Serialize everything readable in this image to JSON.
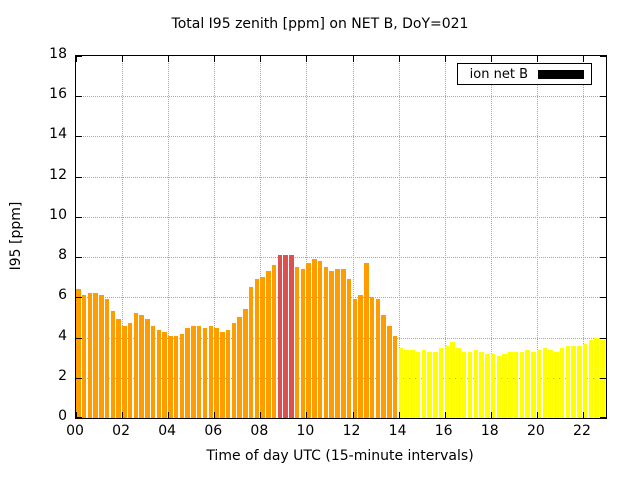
{
  "title": "Total I95 zenith [ppm] on NET B, DoY=021",
  "axes": {
    "xlabel": "Time of day UTC (15-minute intervals)",
    "ylabel": "I95 [ppm]"
  },
  "legend": {
    "label": "ion net B",
    "swatch_color": "#000000"
  },
  "chart_data": {
    "type": "bar",
    "title": "Total I95 zenith [ppm] on NET B, DoY=021",
    "xlabel": "Time of day UTC (15-minute intervals)",
    "ylabel": "I95 [ppm]",
    "xlim": [
      0,
      23
    ],
    "ylim": [
      0,
      18
    ],
    "x_tick_values": [
      0,
      2,
      4,
      6,
      8,
      10,
      12,
      14,
      16,
      18,
      20,
      22
    ],
    "x_tick_labels": [
      "00",
      "02",
      "04",
      "06",
      "08",
      "10",
      "12",
      "14",
      "16",
      "18",
      "20",
      "22"
    ],
    "y_tick_values": [
      0,
      2,
      4,
      6,
      8,
      10,
      12,
      14,
      16,
      18
    ],
    "grid": true,
    "legend_position": "top-right",
    "series_name": "ion net B",
    "interval_minutes": 15,
    "colors": {
      "o": "#ff9d00",
      "r": "#dd5050",
      "y": "#ffff00"
    },
    "points": [
      {
        "t": "00:00",
        "v": 6.4,
        "c": "o"
      },
      {
        "t": "00:15",
        "v": 6.1,
        "c": "o"
      },
      {
        "t": "00:30",
        "v": 6.2,
        "c": "o"
      },
      {
        "t": "00:45",
        "v": 6.2,
        "c": "o"
      },
      {
        "t": "01:00",
        "v": 6.1,
        "c": "o"
      },
      {
        "t": "01:15",
        "v": 5.9,
        "c": "o"
      },
      {
        "t": "01:30",
        "v": 5.3,
        "c": "o"
      },
      {
        "t": "01:45",
        "v": 4.9,
        "c": "o"
      },
      {
        "t": "02:00",
        "v": 4.6,
        "c": "o"
      },
      {
        "t": "02:15",
        "v": 4.7,
        "c": "o"
      },
      {
        "t": "02:30",
        "v": 5.2,
        "c": "o"
      },
      {
        "t": "02:45",
        "v": 5.1,
        "c": "o"
      },
      {
        "t": "03:00",
        "v": 4.9,
        "c": "o"
      },
      {
        "t": "03:15",
        "v": 4.6,
        "c": "o"
      },
      {
        "t": "03:30",
        "v": 4.4,
        "c": "o"
      },
      {
        "t": "03:45",
        "v": 4.3,
        "c": "o"
      },
      {
        "t": "04:00",
        "v": 4.1,
        "c": "o"
      },
      {
        "t": "04:15",
        "v": 4.1,
        "c": "o"
      },
      {
        "t": "04:30",
        "v": 4.2,
        "c": "o"
      },
      {
        "t": "04:45",
        "v": 4.5,
        "c": "o"
      },
      {
        "t": "05:00",
        "v": 4.6,
        "c": "o"
      },
      {
        "t": "05:15",
        "v": 4.6,
        "c": "o"
      },
      {
        "t": "05:30",
        "v": 4.5,
        "c": "o"
      },
      {
        "t": "05:45",
        "v": 4.6,
        "c": "o"
      },
      {
        "t": "06:00",
        "v": 4.5,
        "c": "o"
      },
      {
        "t": "06:15",
        "v": 4.3,
        "c": "o"
      },
      {
        "t": "06:30",
        "v": 4.4,
        "c": "o"
      },
      {
        "t": "06:45",
        "v": 4.7,
        "c": "o"
      },
      {
        "t": "07:00",
        "v": 5.0,
        "c": "o"
      },
      {
        "t": "07:15",
        "v": 5.4,
        "c": "o"
      },
      {
        "t": "07:30",
        "v": 6.5,
        "c": "o"
      },
      {
        "t": "07:45",
        "v": 6.9,
        "c": "o"
      },
      {
        "t": "08:00",
        "v": 7.0,
        "c": "o"
      },
      {
        "t": "08:15",
        "v": 7.3,
        "c": "o"
      },
      {
        "t": "08:30",
        "v": 7.6,
        "c": "o"
      },
      {
        "t": "08:45",
        "v": 8.1,
        "c": "r"
      },
      {
        "t": "09:00",
        "v": 8.1,
        "c": "r"
      },
      {
        "t": "09:15",
        "v": 8.1,
        "c": "r"
      },
      {
        "t": "09:30",
        "v": 7.5,
        "c": "o"
      },
      {
        "t": "09:45",
        "v": 7.4,
        "c": "o"
      },
      {
        "t": "10:00",
        "v": 7.7,
        "c": "o"
      },
      {
        "t": "10:15",
        "v": 7.9,
        "c": "o"
      },
      {
        "t": "10:30",
        "v": 7.8,
        "c": "o"
      },
      {
        "t": "10:45",
        "v": 7.5,
        "c": "o"
      },
      {
        "t": "11:00",
        "v": 7.3,
        "c": "o"
      },
      {
        "t": "11:15",
        "v": 7.4,
        "c": "o"
      },
      {
        "t": "11:30",
        "v": 7.4,
        "c": "o"
      },
      {
        "t": "11:45",
        "v": 6.9,
        "c": "o"
      },
      {
        "t": "12:00",
        "v": 5.9,
        "c": "o"
      },
      {
        "t": "12:15",
        "v": 6.1,
        "c": "o"
      },
      {
        "t": "12:30",
        "v": 7.7,
        "c": "o"
      },
      {
        "t": "12:45",
        "v": 6.0,
        "c": "o"
      },
      {
        "t": "13:00",
        "v": 5.9,
        "c": "o"
      },
      {
        "t": "13:15",
        "v": 5.1,
        "c": "o"
      },
      {
        "t": "13:30",
        "v": 4.6,
        "c": "o"
      },
      {
        "t": "13:45",
        "v": 4.1,
        "c": "o"
      },
      {
        "t": "14:00",
        "v": 3.5,
        "c": "y"
      },
      {
        "t": "14:15",
        "v": 3.4,
        "c": "y"
      },
      {
        "t": "14:30",
        "v": 3.4,
        "c": "y"
      },
      {
        "t": "14:45",
        "v": 3.3,
        "c": "y"
      },
      {
        "t": "15:00",
        "v": 3.4,
        "c": "y"
      },
      {
        "t": "15:15",
        "v": 3.3,
        "c": "y"
      },
      {
        "t": "15:30",
        "v": 3.3,
        "c": "y"
      },
      {
        "t": "15:45",
        "v": 3.5,
        "c": "y"
      },
      {
        "t": "16:00",
        "v": 3.6,
        "c": "y"
      },
      {
        "t": "16:15",
        "v": 3.8,
        "c": "y"
      },
      {
        "t": "16:30",
        "v": 3.5,
        "c": "y"
      },
      {
        "t": "16:45",
        "v": 3.3,
        "c": "y"
      },
      {
        "t": "17:00",
        "v": 3.3,
        "c": "y"
      },
      {
        "t": "17:15",
        "v": 3.4,
        "c": "y"
      },
      {
        "t": "17:30",
        "v": 3.3,
        "c": "y"
      },
      {
        "t": "17:45",
        "v": 3.2,
        "c": "y"
      },
      {
        "t": "18:00",
        "v": 3.2,
        "c": "y"
      },
      {
        "t": "18:15",
        "v": 3.1,
        "c": "y"
      },
      {
        "t": "18:30",
        "v": 3.2,
        "c": "y"
      },
      {
        "t": "18:45",
        "v": 3.3,
        "c": "y"
      },
      {
        "t": "19:00",
        "v": 3.3,
        "c": "y"
      },
      {
        "t": "19:15",
        "v": 3.3,
        "c": "y"
      },
      {
        "t": "19:30",
        "v": 3.4,
        "c": "y"
      },
      {
        "t": "19:45",
        "v": 3.3,
        "c": "y"
      },
      {
        "t": "20:00",
        "v": 3.4,
        "c": "y"
      },
      {
        "t": "20:15",
        "v": 3.5,
        "c": "y"
      },
      {
        "t": "20:30",
        "v": 3.4,
        "c": "y"
      },
      {
        "t": "20:45",
        "v": 3.3,
        "c": "y"
      },
      {
        "t": "21:00",
        "v": 3.5,
        "c": "y"
      },
      {
        "t": "21:15",
        "v": 3.6,
        "c": "y"
      },
      {
        "t": "21:30",
        "v": 3.6,
        "c": "y"
      },
      {
        "t": "21:45",
        "v": 3.6,
        "c": "y"
      },
      {
        "t": "22:00",
        "v": 3.7,
        "c": "y"
      },
      {
        "t": "22:15",
        "v": 3.9,
        "c": "y"
      },
      {
        "t": "22:30",
        "v": 4.0,
        "c": "y"
      },
      {
        "t": "22:45",
        "v": 3.9,
        "c": "y"
      }
    ]
  }
}
